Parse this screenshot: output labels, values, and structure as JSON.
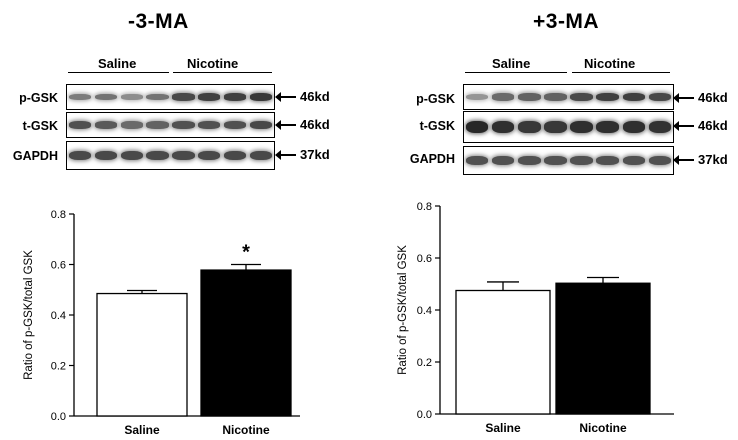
{
  "panels": [
    {
      "title": "-3-MA",
      "groups": [
        "Saline",
        "Nicotine"
      ],
      "rows": [
        {
          "label": "p-GSK",
          "size": "46kd"
        },
        {
          "label": "t-GSK",
          "size": "46kd"
        },
        {
          "label": "GAPDH",
          "size": "37kd"
        }
      ]
    },
    {
      "title": "+3-MA",
      "groups": [
        "Saline",
        "Nicotine"
      ],
      "rows": [
        {
          "label": "p-GSK",
          "size": "46kd"
        },
        {
          "label": "t-GSK",
          "size": "46kd"
        },
        {
          "label": "GAPDH",
          "size": "37kd"
        }
      ]
    }
  ],
  "chart_data": [
    {
      "type": "bar",
      "categories": [
        "Saline",
        "Nicotine"
      ],
      "values": [
        0.485,
        0.578
      ],
      "errors": [
        0.012,
        0.022
      ],
      "colors": [
        "#ffffff",
        "#000000"
      ],
      "annotations": [
        "",
        "*"
      ],
      "ylabel": "Ratio of p-GSK/total GSK",
      "ylim": [
        0,
        0.8
      ],
      "yticks": [
        "0.0",
        "0.2",
        "0.4",
        "0.6",
        "0.8"
      ],
      "grid": false
    },
    {
      "type": "bar",
      "categories": [
        "Saline",
        "Nicotine"
      ],
      "values": [
        0.475,
        0.503
      ],
      "errors": [
        0.033,
        0.022
      ],
      "colors": [
        "#ffffff",
        "#000000"
      ],
      "annotations": [
        "",
        ""
      ],
      "ylabel": "Ratio of p-GSK/total GSK",
      "ylim": [
        0,
        0.8
      ],
      "yticks": [
        "0.0",
        "0.2",
        "0.4",
        "0.6",
        "0.8"
      ],
      "grid": false
    }
  ]
}
